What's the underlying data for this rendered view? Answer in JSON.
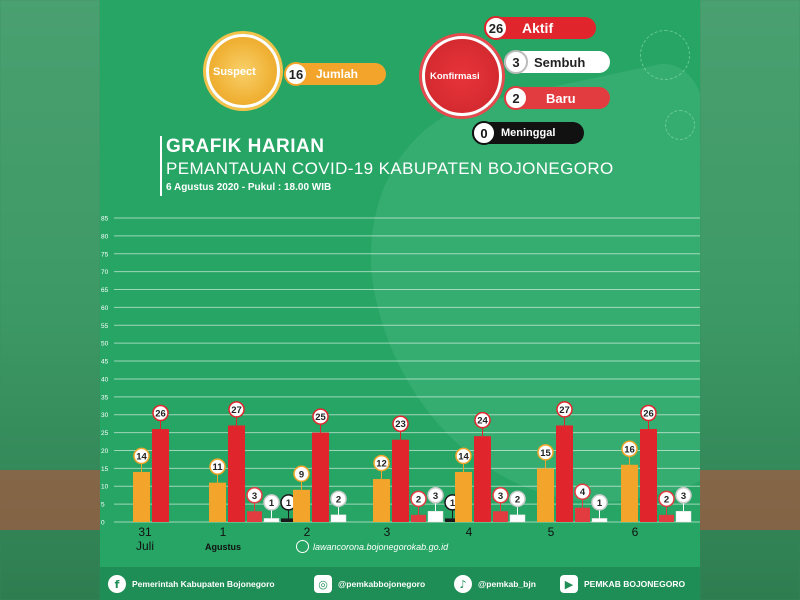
{
  "summary": {
    "suspect": {
      "label": "Suspect",
      "value": "16",
      "text": "Jumlah"
    },
    "konfirmasi": {
      "label": "Konfirmasi"
    },
    "aktif": {
      "value": "26",
      "text": "Aktif"
    },
    "sembuh": {
      "value": "3",
      "text": "Sembuh"
    },
    "baru": {
      "value": "2",
      "text": "Baru"
    },
    "meninggal": {
      "value": "0",
      "text": "Meninggal"
    }
  },
  "header": {
    "title": "GRAFIK HARIAN",
    "subtitle": "PEMANTAUAN COVID-19 KABUPATEN BOJONEGORO",
    "date": "6 Agustus 2020 - Pukul : 18.00 WIB"
  },
  "website": "lawancorona.bojonegorokab.go.id",
  "footer": {
    "facebook": "Pemerintah Kabupaten Bojonegoro",
    "instagram": "@pemkabbojonegoro",
    "twitter": "@pemkab_bjn",
    "youtube": "PEMKAB BOJONEGORO"
  },
  "icons": {
    "facebook": "facebook-icon",
    "instagram": "instagram-icon",
    "twitter": "twitter-icon",
    "youtube": "youtube-icon",
    "globe": "globe-icon"
  },
  "colors": {
    "background": "#27a565",
    "suspect": "#f2a52a",
    "aktif": "#e0262c",
    "sembuh": "#ffffff",
    "baru": "#e23b40",
    "meninggal": "#1a1a1a"
  },
  "chart_data": {
    "type": "bar",
    "categories": [
      "31 Juli",
      "1 Agustus",
      "2",
      "3",
      "4",
      "5",
      "6"
    ],
    "category_lines": [
      [
        "31",
        "Juli"
      ],
      [
        "1",
        "Agustus"
      ],
      [
        "2"
      ],
      [
        "3"
      ],
      [
        "4"
      ],
      [
        "5"
      ],
      [
        "6"
      ]
    ],
    "ylim": [
      0,
      85
    ],
    "yticks": [
      0,
      5,
      10,
      15,
      20,
      25,
      30,
      35,
      40,
      45,
      50,
      55,
      60,
      65,
      70,
      75,
      80,
      85
    ],
    "grid": true,
    "series": [
      {
        "key": "suspect",
        "values": [
          14,
          11,
          9,
          12,
          14,
          15,
          16
        ]
      },
      {
        "key": "aktif",
        "values": [
          26,
          27,
          25,
          23,
          24,
          27,
          26
        ]
      },
      {
        "key": "baru",
        "values": [
          null,
          3,
          null,
          2,
          3,
          4,
          2
        ]
      },
      {
        "key": "sembuh",
        "values": [
          null,
          1,
          2,
          3,
          2,
          1,
          3
        ]
      },
      {
        "key": "meninggal",
        "values": [
          null,
          1,
          null,
          1,
          null,
          null,
          null
        ]
      }
    ]
  }
}
